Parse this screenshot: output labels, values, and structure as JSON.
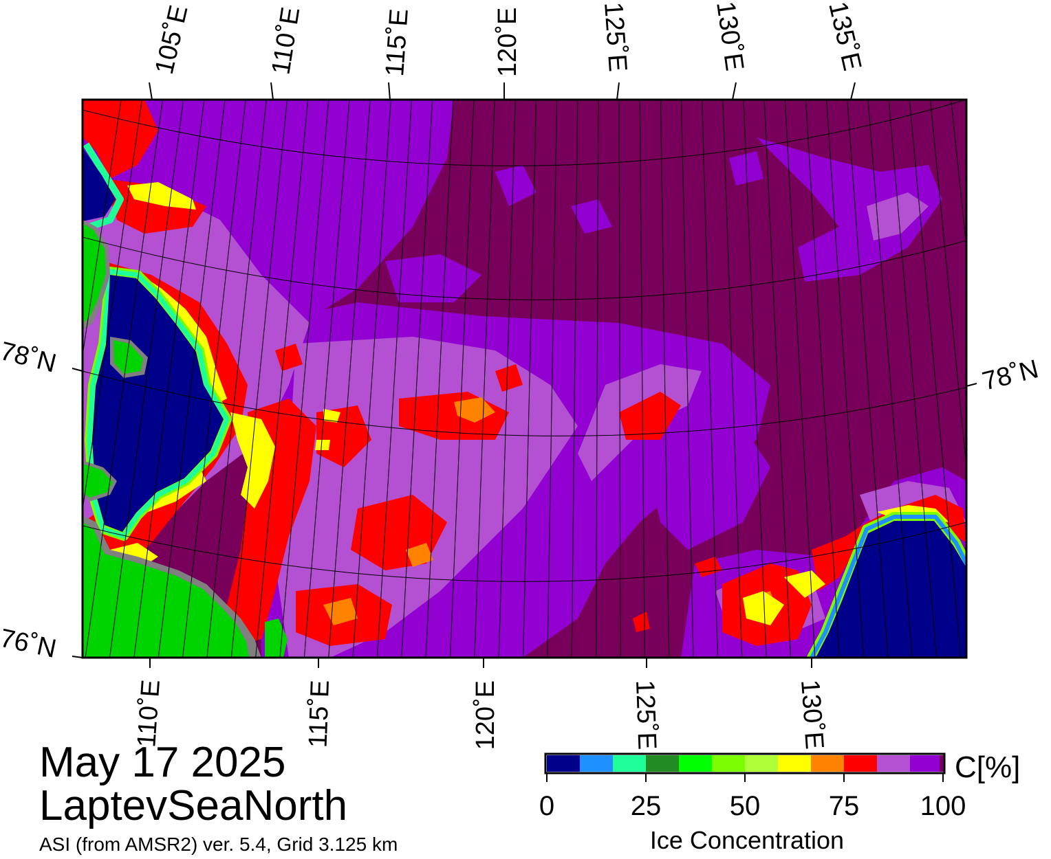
{
  "map": {
    "region_name": "LaptevSeaNorth",
    "date": "May 17 2025",
    "product": "ASI (from AMSR2) ver. 5.4,  Grid 3.125 km",
    "top_longitude_labels": [
      "105˚E",
      "110˚E",
      "115˚E",
      "120˚E",
      "125˚E",
      "130˚E",
      "135˚E"
    ],
    "bottom_longitude_labels": [
      "110˚E",
      "115˚E",
      "120˚E",
      "125˚E",
      "130˚E"
    ],
    "latitude_labels": {
      "lat78_left": "78˚N",
      "lat78_right": "78˚N",
      "lat76_left": "76˚N"
    },
    "colors": {
      "open_water": "#00008b",
      "land": "#00d400",
      "coast_gray": "#808080",
      "ice_100": "#78005a",
      "ice_95": "#9200d2",
      "ice_90": "#b450d2",
      "ice_85": "#ff0000",
      "ice_80": "#ff8200",
      "ice_75": "#ffff00"
    }
  },
  "legend": {
    "title": "Ice Concentration",
    "unit": "C[%]",
    "ticks": [
      "0",
      "25",
      "50",
      "75",
      "100"
    ],
    "colors": [
      "#00008b",
      "#1e90ff",
      "#1eff9a",
      "#228b22",
      "#00ff00",
      "#7cfc00",
      "#aeff38",
      "#ffff00",
      "#ff8200",
      "#ff0000",
      "#b450d2",
      "#9200d2"
    ]
  }
}
